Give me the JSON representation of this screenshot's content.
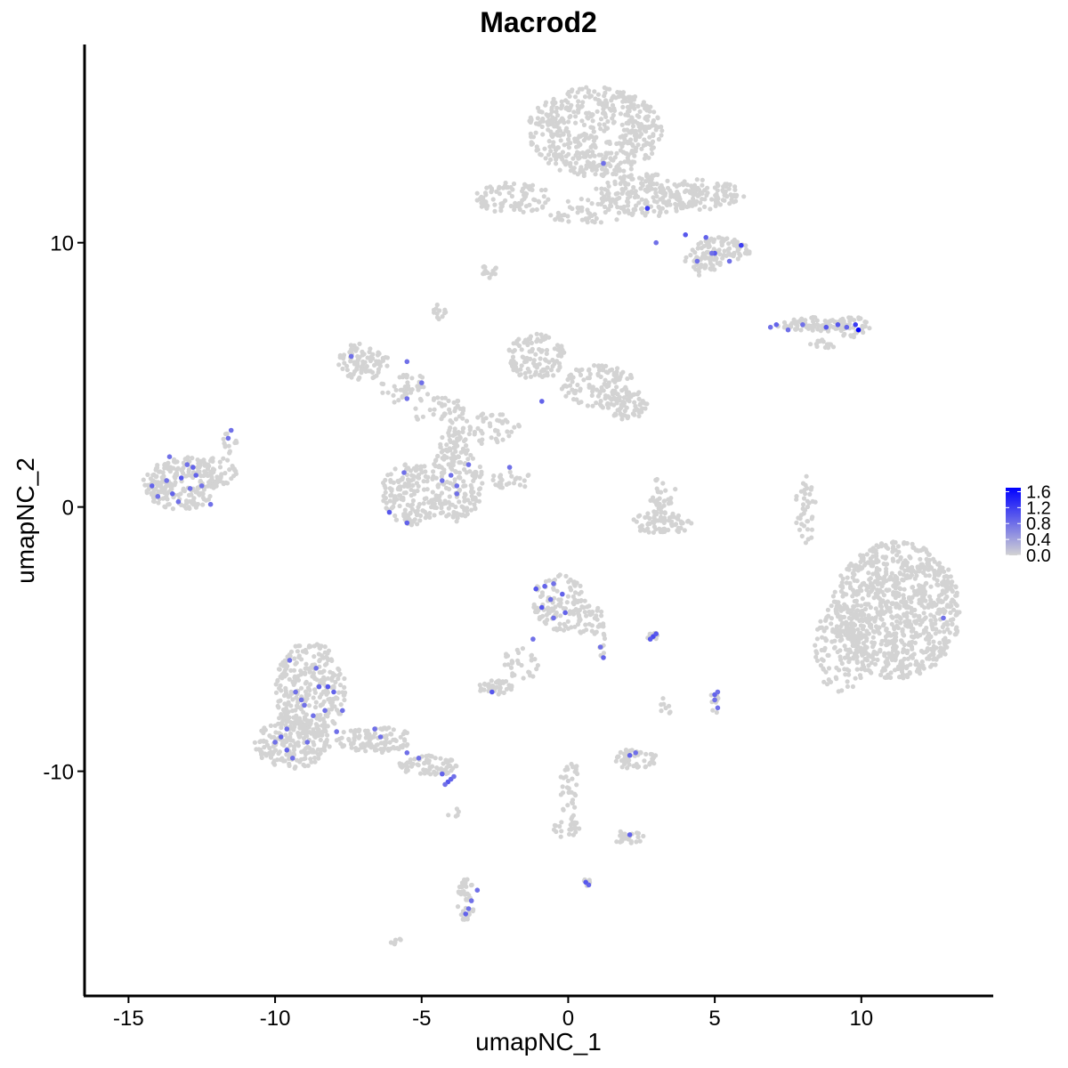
{
  "chart_data": {
    "type": "scatter",
    "title": "Macrod2",
    "xlabel": "umapNC_1",
    "ylabel": "umapNC_2",
    "xlim": [
      -16.5,
      14.5
    ],
    "ylim": [
      -18.5,
      17.5
    ],
    "x_ticks": [
      -15,
      -10,
      -5,
      0,
      5,
      10
    ],
    "x_tick_labels": [
      "-15",
      "-10",
      "-5",
      "0",
      "5",
      "10"
    ],
    "y_ticks": [
      -10,
      0,
      10
    ],
    "y_tick_labels": [
      "-10",
      "0",
      "10"
    ],
    "grid": false,
    "color_scale": {
      "low": "#d3d3d3",
      "high": "#0000ff",
      "min": 0,
      "max": 1.7,
      "ticks": [
        1.6,
        1.2,
        0.8,
        0.4,
        0.0
      ],
      "tick_labels": [
        "1.6",
        "1.2",
        "0.8",
        "0.4",
        "0.0"
      ],
      "legend_position": "right"
    },
    "clusters": [
      {
        "cx": 0.9,
        "cy": 14.2,
        "rx": 2.3,
        "ry": 1.7,
        "n": 520
      },
      {
        "cx": 2.7,
        "cy": 11.8,
        "rx": 1.9,
        "ry": 0.8,
        "n": 160
      },
      {
        "cx": 4.4,
        "cy": 11.8,
        "rx": 1.6,
        "ry": 0.6,
        "n": 110
      },
      {
        "cx": 5.2,
        "cy": 9.7,
        "rx": 1.0,
        "ry": 0.5,
        "n": 90
      },
      {
        "cx": 4.6,
        "cy": 9.2,
        "rx": 0.7,
        "ry": 0.5,
        "n": 40
      },
      {
        "cx": -1.9,
        "cy": 11.7,
        "rx": 1.3,
        "ry": 0.6,
        "n": 90
      },
      {
        "cx": 0.7,
        "cy": 11.2,
        "rx": 1.6,
        "ry": 0.5,
        "n": 50
      },
      {
        "cx": -2.7,
        "cy": 8.9,
        "rx": 0.3,
        "ry": 0.25,
        "n": 14
      },
      {
        "cx": -4.4,
        "cy": 7.4,
        "rx": 0.25,
        "ry": 0.35,
        "n": 12
      },
      {
        "cx": 8.4,
        "cy": 6.9,
        "rx": 1.3,
        "ry": 0.28,
        "n": 80
      },
      {
        "cx": 9.7,
        "cy": 6.8,
        "rx": 0.6,
        "ry": 0.4,
        "n": 40
      },
      {
        "cx": 8.7,
        "cy": 6.2,
        "rx": 0.5,
        "ry": 0.2,
        "n": 14
      },
      {
        "cx": -7.0,
        "cy": 5.5,
        "rx": 0.9,
        "ry": 0.7,
        "n": 90
      },
      {
        "cx": -5.6,
        "cy": 4.5,
        "rx": 0.9,
        "ry": 0.6,
        "n": 40
      },
      {
        "cx": -4.5,
        "cy": 3.7,
        "rx": 1.0,
        "ry": 0.5,
        "n": 40
      },
      {
        "cx": -1.1,
        "cy": 5.7,
        "rx": 1.0,
        "ry": 0.9,
        "n": 120
      },
      {
        "cx": 1.0,
        "cy": 4.6,
        "rx": 1.3,
        "ry": 0.8,
        "n": 110
      },
      {
        "cx": 1.9,
        "cy": 3.9,
        "rx": 0.8,
        "ry": 0.6,
        "n": 70
      },
      {
        "cx": -2.9,
        "cy": 3.0,
        "rx": 1.3,
        "ry": 0.6,
        "n": 60
      },
      {
        "cx": -5.3,
        "cy": 0.5,
        "rx": 1.1,
        "ry": 1.2,
        "n": 160
      },
      {
        "cx": -3.8,
        "cy": 0.9,
        "rx": 0.9,
        "ry": 1.5,
        "n": 150
      },
      {
        "cx": -3.9,
        "cy": 2.3,
        "rx": 0.5,
        "ry": 0.6,
        "n": 40
      },
      {
        "cx": -1.8,
        "cy": 1.0,
        "rx": 0.9,
        "ry": 0.35,
        "n": 25
      },
      {
        "cx": -13.2,
        "cy": 0.9,
        "rx": 1.3,
        "ry": 1.0,
        "n": 220
      },
      {
        "cx": -12.0,
        "cy": 1.3,
        "rx": 0.8,
        "ry": 0.6,
        "n": 50
      },
      {
        "cx": -11.6,
        "cy": 2.4,
        "rx": 0.3,
        "ry": 0.4,
        "n": 12
      },
      {
        "cx": 3.2,
        "cy": -0.6,
        "rx": 1.0,
        "ry": 0.45,
        "n": 80
      },
      {
        "cx": 3.2,
        "cy": 0.5,
        "rx": 0.5,
        "ry": 0.6,
        "n": 30
      },
      {
        "cx": 8.1,
        "cy": -0.1,
        "rx": 0.35,
        "ry": 1.3,
        "n": 40
      },
      {
        "cx": 11.2,
        "cy": -3.9,
        "rx": 2.2,
        "ry": 2.6,
        "n": 900
      },
      {
        "cx": 9.3,
        "cy": -5.3,
        "rx": 0.9,
        "ry": 1.8,
        "n": 120
      },
      {
        "cx": -0.3,
        "cy": -3.6,
        "rx": 0.9,
        "ry": 1.1,
        "n": 120
      },
      {
        "cx": 0.7,
        "cy": -4.3,
        "rx": 0.6,
        "ry": 0.6,
        "n": 40
      },
      {
        "cx": -1.6,
        "cy": -5.9,
        "rx": 0.6,
        "ry": 0.7,
        "n": 30
      },
      {
        "cx": -2.5,
        "cy": -6.8,
        "rx": 0.6,
        "ry": 0.3,
        "n": 45
      },
      {
        "cx": 2.9,
        "cy": -4.9,
        "rx": 0.2,
        "ry": 0.15,
        "n": 12
      },
      {
        "cx": 1.2,
        "cy": -5.3,
        "rx": 0.15,
        "ry": 0.5,
        "n": 8
      },
      {
        "cx": 5.0,
        "cy": -7.4,
        "rx": 0.2,
        "ry": 0.4,
        "n": 14
      },
      {
        "cx": 3.3,
        "cy": -7.6,
        "rx": 0.2,
        "ry": 0.4,
        "n": 8
      },
      {
        "cx": -8.8,
        "cy": -6.9,
        "rx": 1.2,
        "ry": 1.8,
        "n": 300
      },
      {
        "cx": -9.4,
        "cy": -8.9,
        "rx": 1.3,
        "ry": 1.0,
        "n": 200
      },
      {
        "cx": -6.6,
        "cy": -8.8,
        "rx": 1.3,
        "ry": 0.5,
        "n": 110
      },
      {
        "cx": -4.8,
        "cy": -9.8,
        "rx": 1.0,
        "ry": 0.4,
        "n": 70
      },
      {
        "cx": 2.3,
        "cy": -9.5,
        "rx": 0.7,
        "ry": 0.45,
        "n": 50
      },
      {
        "cx": 2.0,
        "cy": -12.5,
        "rx": 0.6,
        "ry": 0.25,
        "n": 30
      },
      {
        "cx": 0.1,
        "cy": -10.8,
        "rx": 0.4,
        "ry": 1.4,
        "n": 40
      },
      {
        "cx": -0.1,
        "cy": -12.2,
        "rx": 0.5,
        "ry": 0.3,
        "n": 20
      },
      {
        "cx": -3.5,
        "cy": -14.9,
        "rx": 0.3,
        "ry": 0.9,
        "n": 40
      },
      {
        "cx": 0.6,
        "cy": -14.2,
        "rx": 0.15,
        "ry": 0.15,
        "n": 6
      },
      {
        "cx": -5.9,
        "cy": -16.4,
        "rx": 0.2,
        "ry": 0.15,
        "n": 8
      },
      {
        "cx": -3.9,
        "cy": -11.6,
        "rx": 0.4,
        "ry": 0.3,
        "n": 5
      }
    ],
    "expressed_points": [
      {
        "x": 1.2,
        "y": 13.0,
        "v": 0.8
      },
      {
        "x": 2.7,
        "y": 11.3,
        "v": 1.2
      },
      {
        "x": 3.0,
        "y": 10.0,
        "v": 0.8
      },
      {
        "x": 4.0,
        "y": 10.3,
        "v": 1.0
      },
      {
        "x": 4.7,
        "y": 10.2,
        "v": 0.9
      },
      {
        "x": 5.0,
        "y": 9.6,
        "v": 1.0
      },
      {
        "x": 5.5,
        "y": 9.3,
        "v": 0.8
      },
      {
        "x": 5.9,
        "y": 9.9,
        "v": 1.2
      },
      {
        "x": 4.4,
        "y": 9.3,
        "v": 0.8
      },
      {
        "x": 4.9,
        "y": 9.6,
        "v": 0.8
      },
      {
        "x": 7.1,
        "y": 6.9,
        "v": 0.9
      },
      {
        "x": 7.5,
        "y": 6.7,
        "v": 0.8
      },
      {
        "x": 8.0,
        "y": 6.9,
        "v": 0.8
      },
      {
        "x": 8.8,
        "y": 6.8,
        "v": 1.0
      },
      {
        "x": 9.2,
        "y": 6.9,
        "v": 1.0
      },
      {
        "x": 9.5,
        "y": 6.8,
        "v": 0.9
      },
      {
        "x": 9.8,
        "y": 6.9,
        "v": 1.2
      },
      {
        "x": 9.9,
        "y": 6.7,
        "v": 1.7
      },
      {
        "x": 6.9,
        "y": 6.8,
        "v": 0.8
      },
      {
        "x": -7.4,
        "y": 5.7,
        "v": 0.8
      },
      {
        "x": -5.5,
        "y": 5.5,
        "v": 0.8
      },
      {
        "x": -5.0,
        "y": 4.7,
        "v": 0.8
      },
      {
        "x": -5.5,
        "y": 4.1,
        "v": 0.8
      },
      {
        "x": -0.9,
        "y": 4.0,
        "v": 0.9
      },
      {
        "x": -5.6,
        "y": 1.3,
        "v": 0.8
      },
      {
        "x": -6.1,
        "y": -0.2,
        "v": 1.0
      },
      {
        "x": -5.5,
        "y": -0.6,
        "v": 0.9
      },
      {
        "x": -4.3,
        "y": 1.0,
        "v": 0.8
      },
      {
        "x": -3.8,
        "y": 0.8,
        "v": 0.8
      },
      {
        "x": -3.4,
        "y": 1.6,
        "v": 0.8
      },
      {
        "x": -3.8,
        "y": 0.5,
        "v": 0.8
      },
      {
        "x": -4.0,
        "y": 1.2,
        "v": 0.8
      },
      {
        "x": -2.0,
        "y": 1.5,
        "v": 0.8
      },
      {
        "x": -14.2,
        "y": 0.8,
        "v": 0.9
      },
      {
        "x": -14.0,
        "y": 0.4,
        "v": 0.8
      },
      {
        "x": -13.7,
        "y": 1.0,
        "v": 0.8
      },
      {
        "x": -13.5,
        "y": 0.5,
        "v": 0.9
      },
      {
        "x": -13.2,
        "y": 1.1,
        "v": 1.0
      },
      {
        "x": -13.0,
        "y": 1.6,
        "v": 0.8
      },
      {
        "x": -12.9,
        "y": 0.7,
        "v": 0.8
      },
      {
        "x": -13.3,
        "y": 0.2,
        "v": 0.8
      },
      {
        "x": -12.5,
        "y": 0.8,
        "v": 0.8
      },
      {
        "x": -12.7,
        "y": 1.2,
        "v": 0.9
      },
      {
        "x": -13.6,
        "y": 1.9,
        "v": 0.8
      },
      {
        "x": -12.2,
        "y": 0.1,
        "v": 0.8
      },
      {
        "x": -11.6,
        "y": 2.6,
        "v": 0.8
      },
      {
        "x": -11.5,
        "y": 2.9,
        "v": 0.8
      },
      {
        "x": -12.8,
        "y": 1.5,
        "v": 0.9
      },
      {
        "x": 12.8,
        "y": -4.2,
        "v": 0.8
      },
      {
        "x": -1.1,
        "y": -3.1,
        "v": 1.0
      },
      {
        "x": -0.8,
        "y": -3.0,
        "v": 0.9
      },
      {
        "x": -0.5,
        "y": -2.9,
        "v": 0.8
      },
      {
        "x": -0.9,
        "y": -3.8,
        "v": 1.0
      },
      {
        "x": -0.6,
        "y": -3.5,
        "v": 0.8
      },
      {
        "x": -0.2,
        "y": -3.3,
        "v": 0.9
      },
      {
        "x": -0.5,
        "y": -4.2,
        "v": 0.8
      },
      {
        "x": -0.1,
        "y": -4.0,
        "v": 0.9
      },
      {
        "x": 1.1,
        "y": -5.3,
        "v": 0.8
      },
      {
        "x": 1.2,
        "y": -5.7,
        "v": 0.9
      },
      {
        "x": -1.2,
        "y": -5.0,
        "v": 0.8
      },
      {
        "x": 2.9,
        "y": -4.9,
        "v": 1.1
      },
      {
        "x": 3.0,
        "y": -4.8,
        "v": 1.0
      },
      {
        "x": 2.8,
        "y": -5.0,
        "v": 1.0
      },
      {
        "x": -2.6,
        "y": -7.0,
        "v": 1.0
      },
      {
        "x": 5.0,
        "y": -7.1,
        "v": 0.9
      },
      {
        "x": 5.1,
        "y": -7.6,
        "v": 0.8
      },
      {
        "x": 5.0,
        "y": -7.3,
        "v": 0.8
      },
      {
        "x": 5.1,
        "y": -7.0,
        "v": 0.8
      },
      {
        "x": -9.5,
        "y": -5.8,
        "v": 0.8
      },
      {
        "x": -9.3,
        "y": -7.0,
        "v": 0.8
      },
      {
        "x": -8.6,
        "y": -6.1,
        "v": 0.8
      },
      {
        "x": -8.5,
        "y": -6.8,
        "v": 0.9
      },
      {
        "x": -8.2,
        "y": -6.8,
        "v": 1.0
      },
      {
        "x": -8.0,
        "y": -7.0,
        "v": 0.9
      },
      {
        "x": -8.3,
        "y": -7.7,
        "v": 0.8
      },
      {
        "x": -9.0,
        "y": -7.5,
        "v": 0.8
      },
      {
        "x": -8.7,
        "y": -7.9,
        "v": 0.8
      },
      {
        "x": -7.7,
        "y": -7.7,
        "v": 0.8
      },
      {
        "x": -7.9,
        "y": -8.5,
        "v": 0.8
      },
      {
        "x": -9.6,
        "y": -8.4,
        "v": 0.8
      },
      {
        "x": -9.8,
        "y": -8.7,
        "v": 0.9
      },
      {
        "x": -10.0,
        "y": -8.9,
        "v": 0.8
      },
      {
        "x": -9.6,
        "y": -9.2,
        "v": 0.9
      },
      {
        "x": -9.4,
        "y": -9.5,
        "v": 0.8
      },
      {
        "x": -8.9,
        "y": -8.9,
        "v": 0.8
      },
      {
        "x": -9.1,
        "y": -7.3,
        "v": 0.8
      },
      {
        "x": -6.6,
        "y": -8.4,
        "v": 0.8
      },
      {
        "x": -6.4,
        "y": -8.7,
        "v": 0.8
      },
      {
        "x": -5.5,
        "y": -9.3,
        "v": 0.8
      },
      {
        "x": -5.1,
        "y": -9.5,
        "v": 0.8
      },
      {
        "x": -4.3,
        "y": -10.1,
        "v": 0.9
      },
      {
        "x": -4.1,
        "y": -10.4,
        "v": 1.0
      },
      {
        "x": -4.0,
        "y": -10.3,
        "v": 0.9
      },
      {
        "x": -4.2,
        "y": -10.5,
        "v": 0.8
      },
      {
        "x": -3.9,
        "y": -10.2,
        "v": 0.8
      },
      {
        "x": 2.1,
        "y": -9.4,
        "v": 0.9
      },
      {
        "x": 2.3,
        "y": -9.3,
        "v": 0.8
      },
      {
        "x": 2.1,
        "y": -12.4,
        "v": 0.9
      },
      {
        "x": 0.6,
        "y": -14.2,
        "v": 1.0
      },
      {
        "x": 0.7,
        "y": -14.3,
        "v": 0.9
      },
      {
        "x": -3.5,
        "y": -15.4,
        "v": 0.9
      },
      {
        "x": -3.3,
        "y": -14.9,
        "v": 0.8
      },
      {
        "x": -3.4,
        "y": -15.2,
        "v": 0.8
      },
      {
        "x": -3.1,
        "y": -14.5,
        "v": 0.8
      }
    ]
  }
}
